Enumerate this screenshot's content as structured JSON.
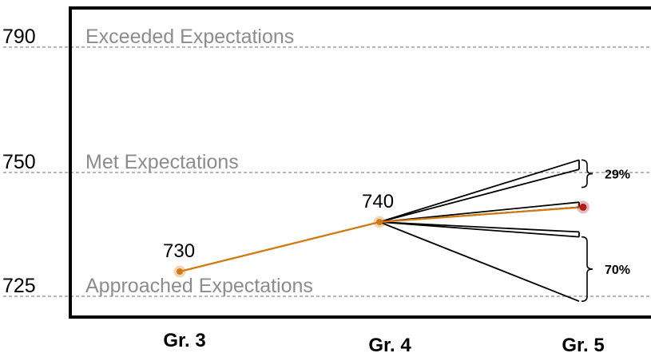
{
  "chart_data": {
    "type": "line",
    "x_categories": [
      "Gr. 3",
      "Gr. 4",
      "Gr. 5"
    ],
    "series": [
      {
        "values": [
          730,
          740,
          743
        ],
        "color": "#d17a0f"
      }
    ],
    "reference_lines": [
      {
        "value": 790,
        "axis_label": "790",
        "band_label": "Exceeded Expectations"
      },
      {
        "value": 750,
        "axis_label": "750",
        "band_label": "Met Expectations"
      },
      {
        "value": 725,
        "axis_label": "725",
        "band_label": "Approached Expectations"
      }
    ],
    "point_labels": [
      {
        "category": "Gr. 3",
        "text": "730"
      },
      {
        "category": "Gr. 4",
        "text": "740"
      }
    ],
    "projection_fan": {
      "from": "Gr. 4",
      "to": "Gr. 5",
      "outcome_values": [
        754,
        751,
        744,
        743,
        738,
        737,
        724
      ],
      "brackets": [
        {
          "range": [
            747,
            754
          ],
          "label": "29%"
        },
        {
          "range": [
            724,
            737
          ],
          "label": "70%"
        }
      ]
    },
    "highlight_point": {
      "category": "Gr. 5",
      "value": 743,
      "color": "#b21e1e"
    },
    "ylim": [
      723,
      795
    ],
    "grid": false,
    "legend": "none"
  }
}
